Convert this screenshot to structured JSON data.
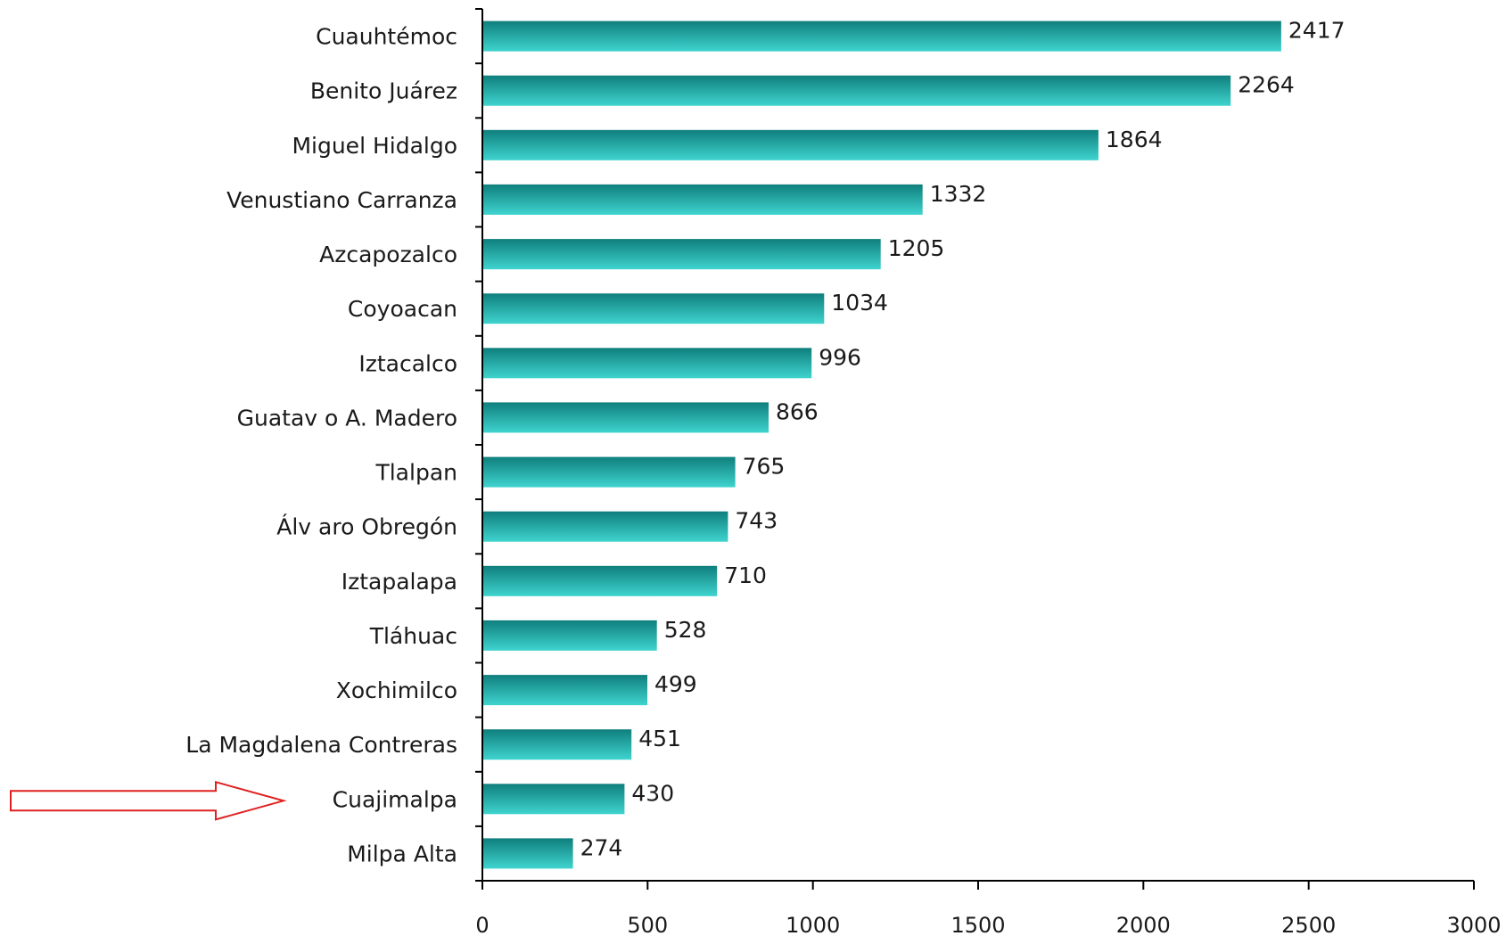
{
  "chart_data": {
    "type": "bar",
    "orientation": "horizontal",
    "categories": [
      "Cuauhtémoc",
      "Benito Juárez",
      "Miguel Hidalgo",
      "Venustiano Carranza",
      "Azcapozalco",
      "Coyoacan",
      "Iztacalco",
      "Guatav o A. Madero",
      "Tlalpan",
      "Álv aro Obregón",
      "Iztapalapa",
      "Tláhuac",
      "Xochimilco",
      "La Magdalena Contreras",
      "Cuajimalpa",
      "Milpa Alta"
    ],
    "values": [
      2417,
      2264,
      1864,
      1332,
      1205,
      1034,
      996,
      866,
      765,
      743,
      710,
      528,
      499,
      451,
      430,
      274
    ],
    "value_labels": [
      "2417",
      "2264",
      "1864",
      "1332",
      "1205",
      "1034",
      "996",
      "866",
      "765",
      "743",
      "710",
      "528",
      "499",
      "451",
      "430",
      "274"
    ],
    "xlim": [
      0,
      3000
    ],
    "x_ticks": [
      0,
      500,
      1000,
      1500,
      2000,
      2500,
      3000
    ],
    "x_tick_labels": [
      "0",
      "500",
      "1000",
      "1500",
      "2000",
      "2500",
      "3000"
    ],
    "title": "",
    "xlabel": "",
    "ylabel": "",
    "grid": false,
    "bar_color_top": "#0f7f7d",
    "bar_color_bottom": "#3fd4cf",
    "annotation": {
      "type": "arrow",
      "points_to": "Cuajimalpa",
      "color": "#e02020"
    }
  }
}
